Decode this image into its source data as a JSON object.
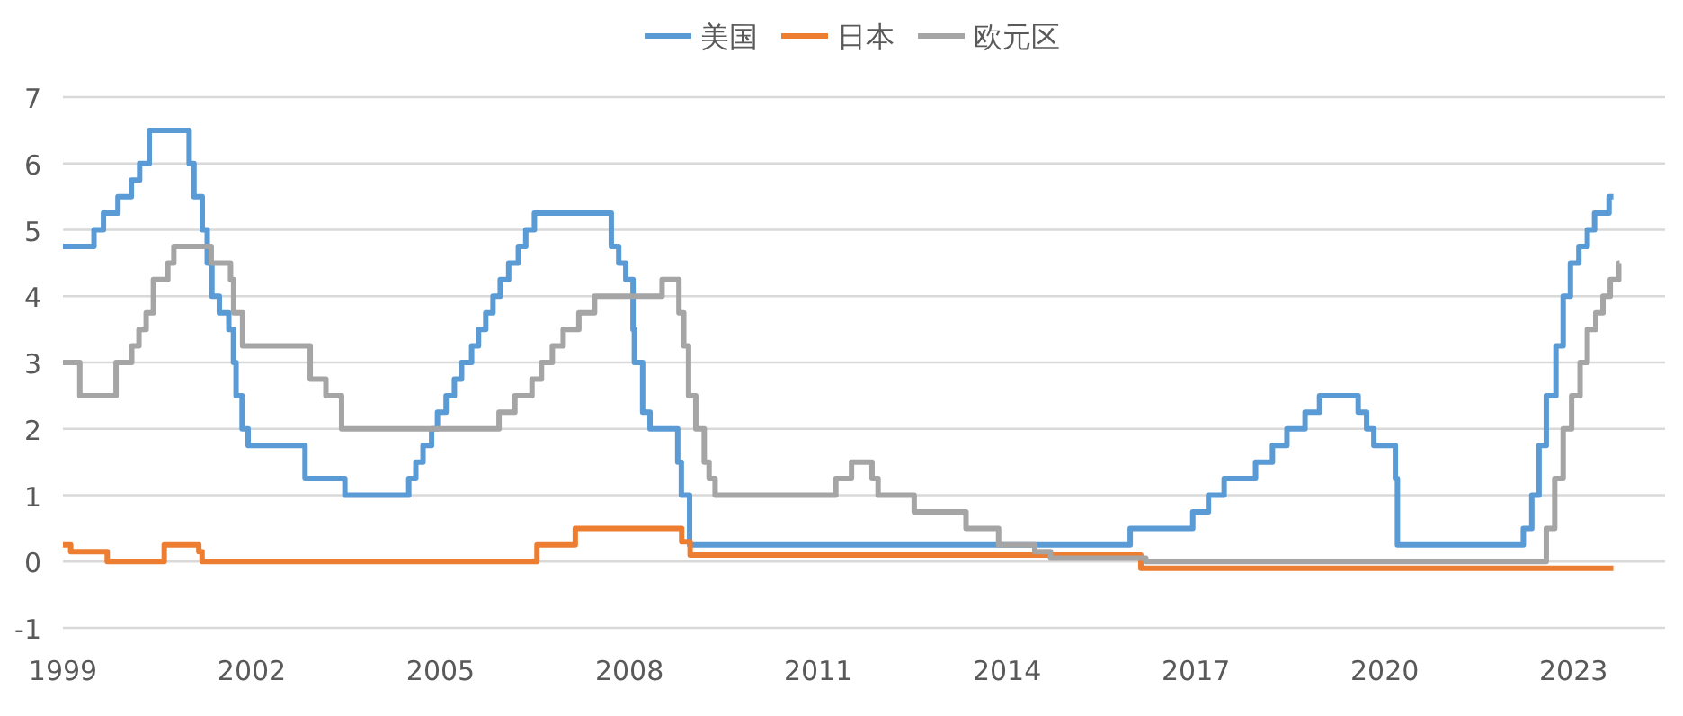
{
  "chart_data": {
    "type": "step",
    "legend": "top",
    "grid": "y",
    "line_style": "solid",
    "marker": "none",
    "xlim": [
      "1999-01-01",
      "2024-06-15"
    ],
    "ylim": [
      -1,
      7
    ],
    "yticks": [
      -1,
      0,
      1,
      2,
      3,
      4,
      5,
      6,
      7
    ],
    "xticks": [
      {
        "value": "1999-01-01",
        "label": "1999"
      },
      {
        "value": "2002-01-01",
        "label": "2002"
      },
      {
        "value": "2005-01-01",
        "label": "2005"
      },
      {
        "value": "2008-01-01",
        "label": "2008"
      },
      {
        "value": "2011-01-01",
        "label": "2011"
      },
      {
        "value": "2014-01-01",
        "label": "2014"
      },
      {
        "value": "2017-01-01",
        "label": "2017"
      },
      {
        "value": "2020-01-01",
        "label": "2020"
      },
      {
        "value": "2023-01-01",
        "label": "2023"
      }
    ],
    "series": [
      {
        "name": "美国",
        "color": "#5b9bd5",
        "x": [
          "1999-01-01",
          "1999-06-30",
          "1999-08-24",
          "1999-11-16",
          "2000-02-02",
          "2000-03-21",
          "2000-05-16",
          "2001-01-03",
          "2001-01-31",
          "2001-03-20",
          "2001-04-18",
          "2001-05-15",
          "2001-06-27",
          "2001-08-21",
          "2001-09-17",
          "2001-10-02",
          "2001-11-06",
          "2001-12-11",
          "2002-11-06",
          "2003-06-25",
          "2004-06-30",
          "2004-08-10",
          "2004-09-21",
          "2004-11-10",
          "2004-12-14",
          "2005-02-02",
          "2005-03-22",
          "2005-05-03",
          "2005-06-30",
          "2005-08-09",
          "2005-09-20",
          "2005-11-01",
          "2005-12-13",
          "2006-01-31",
          "2006-03-28",
          "2006-05-10",
          "2006-06-29",
          "2007-09-18",
          "2007-10-31",
          "2007-12-11",
          "2008-01-22",
          "2008-01-30",
          "2008-03-18",
          "2008-04-30",
          "2008-10-08",
          "2008-10-29",
          "2008-12-16",
          "2015-12-16",
          "2016-12-14",
          "2017-03-15",
          "2017-06-14",
          "2017-12-13",
          "2018-03-21",
          "2018-06-13",
          "2018-09-26",
          "2018-12-19",
          "2019-07-31",
          "2019-09-18",
          "2019-10-30",
          "2020-03-03",
          "2020-03-15",
          "2022-03-16",
          "2022-05-04",
          "2022-06-15",
          "2022-07-27",
          "2022-09-21",
          "2022-11-02",
          "2022-12-14",
          "2023-02-01",
          "2023-03-22",
          "2023-05-03",
          "2023-07-26",
          "2023-08-20"
        ],
        "values": [
          4.75,
          5,
          5.25,
          5.5,
          5.75,
          6,
          6.5,
          6,
          5.5,
          5,
          4.5,
          4,
          3.75,
          3.5,
          3,
          2.5,
          2,
          1.75,
          1.25,
          1,
          1.25,
          1.5,
          1.75,
          2,
          2.25,
          2.5,
          2.75,
          3,
          3.25,
          3.5,
          3.75,
          4,
          4.25,
          4.5,
          4.75,
          5,
          5.25,
          4.75,
          4.5,
          4.25,
          3.5,
          3,
          2.25,
          2,
          1.5,
          1,
          0.25,
          0.5,
          0.75,
          1,
          1.25,
          1.5,
          1.75,
          2,
          2.25,
          2.5,
          2.25,
          2,
          1.75,
          1.25,
          0.25,
          0.5,
          1,
          1.75,
          2.5,
          3.25,
          4,
          4.5,
          4.75,
          5,
          5.25,
          5.5,
          5.5
        ]
      },
      {
        "name": "日本",
        "color": "#ed7d31",
        "x": [
          "1999-01-01",
          "1999-02-15",
          "1999-09-15",
          "2000-08-11",
          "2001-02-28",
          "2001-03-19",
          "2006-07-14",
          "2007-02-21",
          "2008-10-31",
          "2008-12-19",
          "2016-02-16",
          "2023-08-20"
        ],
        "values": [
          0.25,
          0.15,
          0,
          0.25,
          0.15,
          0,
          0.25,
          0.5,
          0.3,
          0.1,
          -0.1,
          -0.1
        ]
      },
      {
        "name": "欧元区",
        "color": "#a5a5a5",
        "x": [
          "1999-01-01",
          "1999-04-09",
          "1999-11-05",
          "2000-02-04",
          "2000-03-17",
          "2000-04-28",
          "2000-06-09",
          "2000-09-01",
          "2000-10-06",
          "2001-05-11",
          "2001-08-31",
          "2001-09-18",
          "2001-11-09",
          "2002-12-06",
          "2003-03-07",
          "2003-06-06",
          "2005-12-06",
          "2006-03-08",
          "2006-06-15",
          "2006-08-09",
          "2006-10-11",
          "2006-12-13",
          "2007-03-14",
          "2007-06-13",
          "2008-07-09",
          "2008-10-15",
          "2008-11-12",
          "2008-12-10",
          "2009-01-21",
          "2009-03-11",
          "2009-04-08",
          "2009-05-13",
          "2011-04-13",
          "2011-07-13",
          "2011-11-09",
          "2011-12-14",
          "2012-07-11",
          "2013-05-08",
          "2013-11-13",
          "2014-06-11",
          "2014-09-10",
          "2016-03-16",
          "2022-07-27",
          "2022-09-14",
          "2022-11-02",
          "2022-12-21",
          "2023-02-08",
          "2023-03-22",
          "2023-05-10",
          "2023-06-21",
          "2023-08-02",
          "2023-09-20",
          "2023-09-25"
        ],
        "values": [
          3,
          2.5,
          3,
          3.25,
          3.5,
          3.75,
          4.25,
          4.5,
          4.75,
          4.5,
          4.25,
          3.75,
          3.25,
          2.75,
          2.5,
          2,
          2.25,
          2.5,
          2.75,
          3,
          3.25,
          3.5,
          3.75,
          4,
          4.25,
          3.75,
          3.25,
          2.5,
          2,
          1.5,
          1.25,
          1,
          1.25,
          1.5,
          1.25,
          1,
          0.75,
          0.5,
          0.25,
          0.15,
          0.05,
          0,
          0.5,
          1.25,
          2,
          2.5,
          3,
          3.5,
          3.75,
          4,
          4.25,
          4.5,
          4.5
        ]
      }
    ]
  }
}
